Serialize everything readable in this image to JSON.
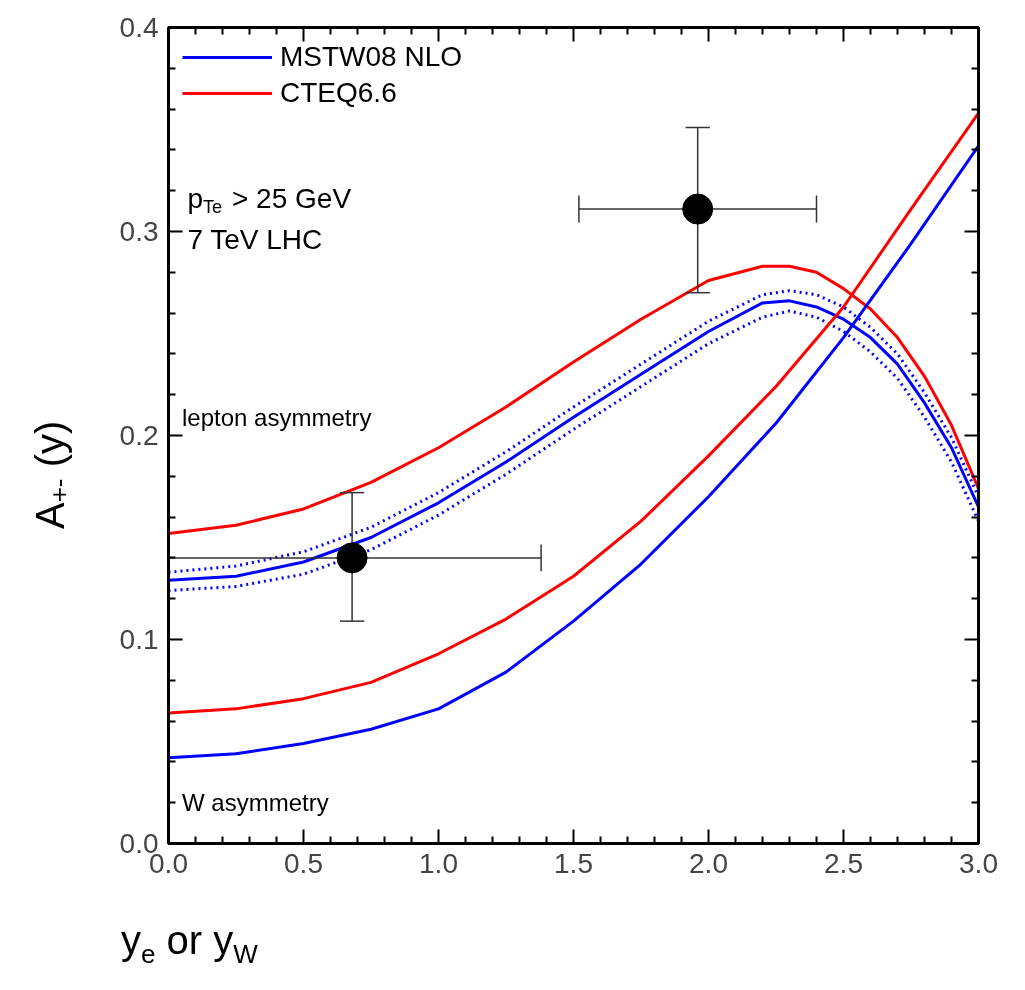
{
  "chart_data": {
    "type": "line",
    "xlabel": "y$_{e}$ or y$_{W}$",
    "ylabel": "A$_{+-}$ (y)",
    "xlim": [
      0.0,
      3.0
    ],
    "xticks": [
      {
        "value": 0,
        "label": "0.0"
      },
      0.5,
      {
        "value": 1,
        "label": "1.0"
      },
      1.5,
      {
        "value": 2,
        "label": "2.0"
      },
      2.5,
      {
        "value": 3,
        "label": "3.0"
      }
    ],
    "ylim": [
      0.0,
      0.4
    ],
    "yticks": [
      {
        "value": 0,
        "label": "0.0"
      },
      0.1,
      0.2,
      0.3,
      0.4
    ],
    "grid": false,
    "legend": "top left",
    "annotations": [
      "p$_{Te}$ > 25 GeV",
      "7 TeV LHC",
      "lepton asymmetry",
      "W asymmetry"
    ],
    "series": [
      {
        "name": "MSTW08 NLO",
        "color": "#0000ff",
        "line_style": "solid",
        "x": [
          0,
          0.25,
          0.5,
          0.75,
          1.0,
          1.25,
          1.5,
          1.75,
          2.0,
          2.2,
          2.3,
          2.4,
          2.5,
          2.6,
          2.7,
          2.8,
          2.9,
          3.0
        ],
        "values": [
          0.129,
          0.131,
          0.138,
          0.15,
          0.167,
          0.187,
          0.209,
          0.23,
          0.251,
          0.265,
          0.266,
          0.263,
          0.257,
          0.248,
          0.235,
          0.216,
          0.194,
          0.165
        ]
      },
      {
        "name": "CTEQ6.6",
        "color": "#ff0000",
        "line_style": "solid",
        "x": [
          0,
          0.25,
          0.5,
          0.75,
          1.0,
          1.25,
          1.5,
          1.75,
          2.0,
          2.2,
          2.3,
          2.4,
          2.5,
          2.6,
          2.7,
          2.8,
          2.9,
          3.0
        ],
        "values": [
          0.152,
          0.156,
          0.164,
          0.177,
          0.194,
          0.214,
          0.236,
          0.257,
          0.276,
          0.283,
          0.283,
          0.28,
          0.272,
          0.262,
          0.248,
          0.229,
          0.205,
          0.174
        ]
      },
      {
        "type": "line",
        "color": "#0000ff",
        "line_style": "dotted",
        "x": [
          0,
          0.25,
          0.5,
          0.75,
          1.0,
          1.25,
          1.5,
          1.75,
          2.0,
          2.2,
          2.3,
          2.4,
          2.5,
          2.6,
          2.7,
          2.8,
          2.9,
          3.0
        ],
        "values": [
          0.133,
          0.136,
          0.143,
          0.155,
          0.172,
          0.192,
          0.214,
          0.235,
          0.256,
          0.269,
          0.271,
          0.269,
          0.263,
          0.253,
          0.24,
          0.221,
          0.199,
          0.17
        ]
      },
      {
        "type": "line",
        "color": "#0000ff",
        "line_style": "dotted",
        "x": [
          0,
          0.25,
          0.5,
          0.75,
          1.0,
          1.25,
          1.5,
          1.75,
          2.0,
          2.2,
          2.3,
          2.4,
          2.5,
          2.6,
          2.7,
          2.8,
          2.9,
          3.0
        ],
        "values": [
          0.124,
          0.126,
          0.132,
          0.144,
          0.161,
          0.181,
          0.203,
          0.224,
          0.245,
          0.258,
          0.261,
          0.258,
          0.251,
          0.241,
          0.228,
          0.209,
          0.187,
          0.158
        ]
      },
      {
        "type": "line",
        "color": "#0000ff",
        "line_style": "solid",
        "x": [
          0,
          0.25,
          0.5,
          0.75,
          1.0,
          1.25,
          1.5,
          1.75,
          2.0,
          2.25,
          2.5,
          2.75,
          3.0
        ],
        "values": [
          0.042,
          0.044,
          0.049,
          0.056,
          0.066,
          0.084,
          0.109,
          0.137,
          0.17,
          0.206,
          0.248,
          0.294,
          0.342
        ]
      },
      {
        "type": "line",
        "color": "#ff0000",
        "line_style": "solid",
        "x": [
          0,
          0.25,
          0.5,
          0.75,
          1.0,
          1.25,
          1.5,
          1.75,
          2.0,
          2.25,
          2.5,
          2.75,
          3.0
        ],
        "values": [
          0.064,
          0.066,
          0.071,
          0.079,
          0.093,
          0.11,
          0.131,
          0.158,
          0.19,
          0.224,
          0.263,
          0.311,
          0.358
        ]
      },
      {
        "type": "scatter",
        "color": "#000000",
        "marker": "circle",
        "x": [
          0.68,
          1.96
        ],
        "values": [
          0.14,
          0.311
        ],
        "errors": [
          [
            0.109,
            0.172
          ],
          [
            0.27,
            0.351
          ]
        ],
        "xerrors": [
          [
            0.0,
            1.38
          ],
          [
            1.52,
            2.4
          ]
        ]
      }
    ]
  }
}
